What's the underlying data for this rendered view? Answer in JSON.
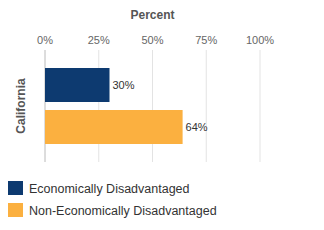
{
  "chart_data": {
    "type": "bar",
    "orientation": "horizontal",
    "xlabel": "Percent",
    "categories": [
      "California"
    ],
    "series": [
      {
        "name": "Economically Disadvantaged",
        "color": "#0d3a70",
        "values": [
          30
        ],
        "value_labels": [
          "30%"
        ]
      },
      {
        "name": "Non-Economically Disadvantaged",
        "color": "#fbb040",
        "values": [
          64
        ],
        "value_labels": [
          "64%"
        ]
      }
    ],
    "xlim": [
      0,
      100
    ],
    "xticks": [
      {
        "value": 0,
        "label": "0%"
      },
      {
        "value": 25,
        "label": "25%"
      },
      {
        "value": 50,
        "label": "50%"
      },
      {
        "value": 75,
        "label": "75%"
      },
      {
        "value": 100,
        "label": "100%"
      }
    ],
    "grid": true,
    "data_labels": true,
    "legend": "bottom"
  }
}
